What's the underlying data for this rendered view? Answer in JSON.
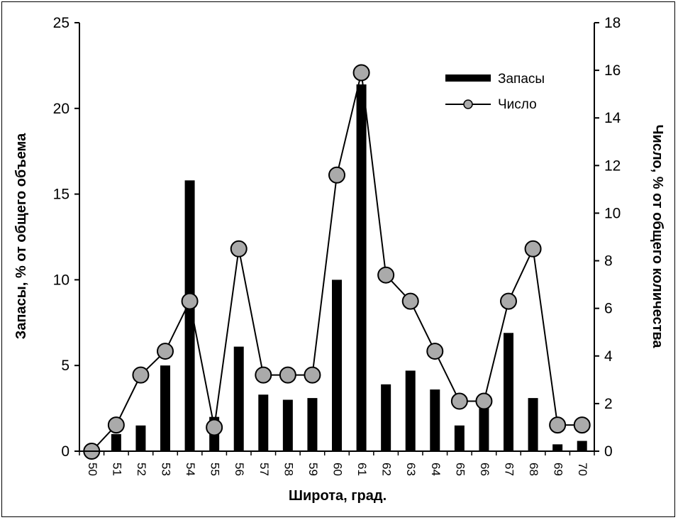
{
  "chart_data": {
    "type": "bar+line",
    "xlabel": "Широта, град.",
    "ylabel_left": "Запасы, % от общего объема",
    "ylabel_right": "Число, % от общего количества",
    "categories": [
      "50",
      "51",
      "52",
      "53",
      "54",
      "55",
      "56",
      "57",
      "58",
      "59",
      "60",
      "61",
      "62",
      "63",
      "64",
      "65",
      "66",
      "67",
      "68",
      "69",
      "70"
    ],
    "y_left": {
      "lim": [
        0,
        25
      ],
      "ticks": [
        "0",
        "5",
        "10",
        "15",
        "20",
        "25"
      ]
    },
    "y_right": {
      "lim": [
        0,
        18
      ],
      "ticks": [
        "0",
        "2",
        "4",
        "6",
        "8",
        "10",
        "12",
        "14",
        "16",
        "18"
      ]
    },
    "series": [
      {
        "name": "Запасы",
        "kind": "bar",
        "axis": "left",
        "color": "#000000",
        "values": [
          0,
          1.0,
          1.5,
          5.0,
          15.8,
          2.0,
          6.1,
          3.3,
          3.0,
          3.1,
          10.0,
          21.4,
          3.9,
          4.7,
          3.6,
          1.5,
          2.8,
          6.9,
          3.1,
          0.4,
          0.6
        ]
      },
      {
        "name": "Число",
        "kind": "line",
        "axis": "right",
        "color": "#000000",
        "marker_fill": "#aaaaaa",
        "values": [
          0,
          1.1,
          3.2,
          4.2,
          6.3,
          1.0,
          8.5,
          3.2,
          3.2,
          3.2,
          11.6,
          15.9,
          7.4,
          6.3,
          4.2,
          2.1,
          2.1,
          6.3,
          8.5,
          1.1,
          1.1
        ]
      }
    ],
    "legend_position": "top-right",
    "grid": false
  }
}
